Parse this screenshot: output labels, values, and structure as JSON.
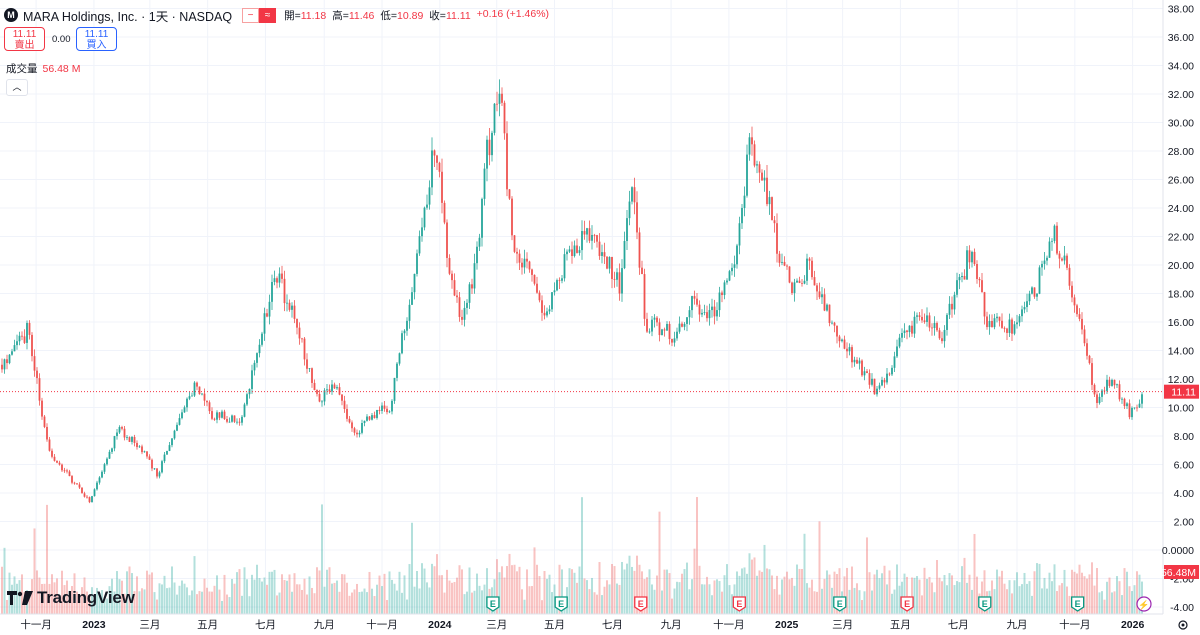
{
  "header": {
    "symbol_title": "MARA Holdings, Inc. · 1天 · NASDAQ",
    "logo_letter": "M",
    "toggle_left": "−",
    "toggle_right": "≈",
    "open_label": "開=",
    "open": "11.18",
    "high_label": "高=",
    "high": "11.46",
    "low_label": "低=",
    "low": "10.89",
    "close_label": "收=",
    "close": "11.11",
    "change": "+0.16 (+1.46%)"
  },
  "trade": {
    "sell_price": "11.11",
    "sell_label": "賣出",
    "spread": "0.00",
    "buy_price": "11.11",
    "buy_label": "買入"
  },
  "volume_legend": {
    "label": "成交量",
    "value": "56.48 M"
  },
  "collapse_icon": "chevron-up-icon",
  "branding": {
    "name": "TradingView"
  },
  "colors": {
    "up": "#26a69a",
    "down": "#ef5350",
    "label_red": "#f23645",
    "earnings_green": "#089981"
  },
  "chart_data": {
    "type": "candlestick",
    "title": "",
    "price_axis": {
      "ticks": [
        "38.00",
        "36.00",
        "34.00",
        "32.00",
        "30.00",
        "28.00",
        "26.00",
        "24.00",
        "22.00",
        "20.00",
        "18.00",
        "16.00",
        "14.00",
        "12.00",
        "10.00",
        "8.00",
        "6.00",
        "4.00",
        "2.00",
        "0.0000",
        "-2.00",
        "-4.00"
      ],
      "last_price_label": "11.11",
      "last_volume_label": "56.48M"
    },
    "time_axis": [
      "十一月",
      "2023",
      "三月",
      "五月",
      "七月",
      "九月",
      "十一月",
      "2024",
      "三月",
      "五月",
      "七月",
      "九月",
      "十一月",
      "2025",
      "三月",
      "五月",
      "七月",
      "九月",
      "十一月",
      "2026"
    ],
    "price_path": [
      {
        "date": "2022-09-26",
        "close": 13.0
      },
      {
        "date": "2022-10-24",
        "close": 15.5
      },
      {
        "date": "2022-11-14",
        "close": 7.0
      },
      {
        "date": "2022-12-28",
        "close": 3.3
      },
      {
        "date": "2023-01-27",
        "close": 8.5
      },
      {
        "date": "2023-02-15",
        "close": 7.5
      },
      {
        "date": "2023-03-09",
        "close": 5.3
      },
      {
        "date": "2023-03-29",
        "close": 8.5
      },
      {
        "date": "2023-04-17",
        "close": 11.5
      },
      {
        "date": "2023-05-05",
        "close": 9.5
      },
      {
        "date": "2023-06-06",
        "close": 9.2
      },
      {
        "date": "2023-06-22",
        "close": 14.0
      },
      {
        "date": "2023-07-13",
        "close": 19.5
      },
      {
        "date": "2023-08-01",
        "close": 16.0
      },
      {
        "date": "2023-08-25",
        "close": 10.5
      },
      {
        "date": "2023-09-14",
        "close": 11.5
      },
      {
        "date": "2023-10-03",
        "close": 8.0
      },
      {
        "date": "2023-10-20",
        "close": 9.5
      },
      {
        "date": "2023-11-10",
        "close": 10.0
      },
      {
        "date": "2023-11-28",
        "close": 17.0
      },
      {
        "date": "2023-12-14",
        "close": 23.0
      },
      {
        "date": "2023-12-27",
        "close": 29.0
      },
      {
        "date": "2024-01-09",
        "close": 20.0
      },
      {
        "date": "2024-01-23",
        "close": 16.0
      },
      {
        "date": "2024-02-06",
        "close": 19.0
      },
      {
        "date": "2024-02-20",
        "close": 28.0
      },
      {
        "date": "2024-03-05",
        "close": 32.0
      },
      {
        "date": "2024-03-18",
        "close": 21.0
      },
      {
        "date": "2024-04-04",
        "close": 19.5
      },
      {
        "date": "2024-04-22",
        "close": 16.0
      },
      {
        "date": "2024-05-10",
        "close": 20.0
      },
      {
        "date": "2024-05-30",
        "close": 22.0
      },
      {
        "date": "2024-06-20",
        "close": 21.0
      },
      {
        "date": "2024-07-09",
        "close": 18.5
      },
      {
        "date": "2024-07-22",
        "close": 26.0
      },
      {
        "date": "2024-08-05",
        "close": 16.0
      },
      {
        "date": "2024-09-06",
        "close": 15.0
      },
      {
        "date": "2024-09-25",
        "close": 17.5
      },
      {
        "date": "2024-10-15",
        "close": 16.5
      },
      {
        "date": "2024-11-05",
        "close": 19.5
      },
      {
        "date": "2024-11-22",
        "close": 28.0
      },
      {
        "date": "2024-12-06",
        "close": 26.0
      },
      {
        "date": "2024-12-24",
        "close": 21.0
      },
      {
        "date": "2025-01-10",
        "close": 18.0
      },
      {
        "date": "2025-01-24",
        "close": 20.0
      },
      {
        "date": "2025-02-13",
        "close": 16.5
      },
      {
        "date": "2025-03-06",
        "close": 14.0
      },
      {
        "date": "2025-04-07",
        "close": 11.0
      },
      {
        "date": "2025-05-01",
        "close": 14.5
      },
      {
        "date": "2025-05-23",
        "close": 16.5
      },
      {
        "date": "2025-06-13",
        "close": 15.0
      },
      {
        "date": "2025-07-14",
        "close": 21.0
      },
      {
        "date": "2025-08-01",
        "close": 16.0
      },
      {
        "date": "2025-08-28",
        "close": 15.5
      },
      {
        "date": "2025-09-22",
        "close": 18.5
      },
      {
        "date": "2025-10-09",
        "close": 22.5
      },
      {
        "date": "2025-10-23",
        "close": 19.5
      },
      {
        "date": "2025-11-13",
        "close": 14.0
      },
      {
        "date": "2025-11-24",
        "close": 10.5
      },
      {
        "date": "2025-12-09",
        "close": 12.0
      },
      {
        "date": "2025-12-30",
        "close": 9.5
      },
      {
        "date": "2026-01-13",
        "close": 11.11
      }
    ],
    "events": [
      {
        "date": "2024-02-26",
        "type": "earnings",
        "label": "E"
      },
      {
        "date": "2024-05-08",
        "type": "earnings",
        "label": "E"
      },
      {
        "date": "2024-07-31",
        "type": "earnings",
        "label": "E"
      },
      {
        "date": "2024-11-12",
        "type": "earnings",
        "label": "E"
      },
      {
        "date": "2025-02-26",
        "type": "earnings",
        "label": "E"
      },
      {
        "date": "2025-05-08",
        "type": "earnings",
        "label": "E"
      },
      {
        "date": "2025-07-29",
        "type": "earnings",
        "label": "E"
      },
      {
        "date": "2025-11-04",
        "type": "earnings",
        "label": "E"
      },
      {
        "date": "2026-01-13",
        "type": "flash",
        "label": "⚡"
      }
    ],
    "grid": true
  }
}
